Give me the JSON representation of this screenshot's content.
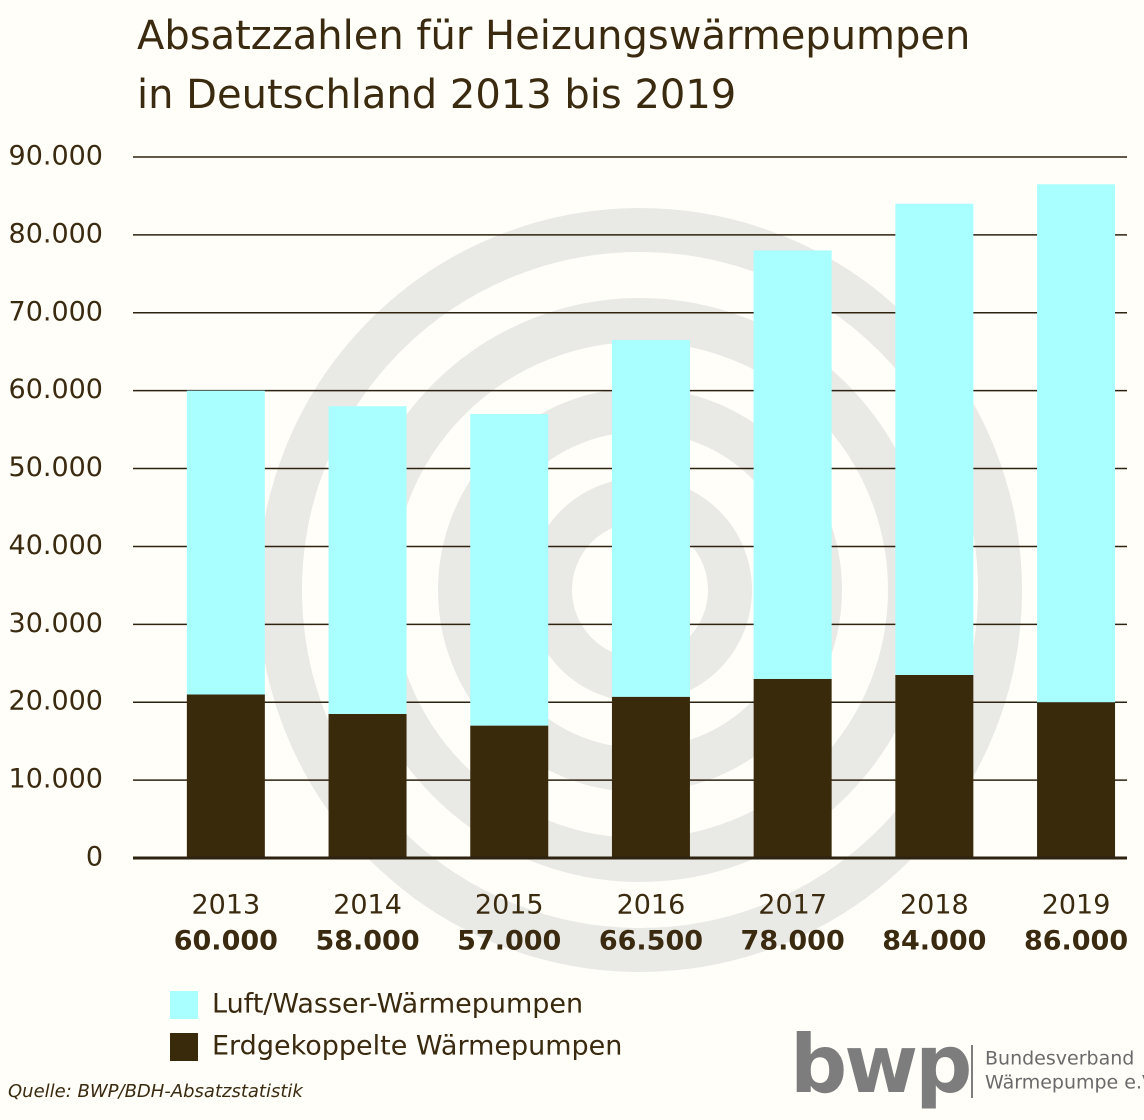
{
  "chart_data": {
    "type": "stacked_bar",
    "title_lines": [
      "Absatzzahlen für Heizungswärmepumpen",
      "in Deutschland 2013 bis 2019"
    ],
    "categories": [
      "2013",
      "2014",
      "2015",
      "2016",
      "2017",
      "2018",
      "2019"
    ],
    "category_totals": [
      "60.000",
      "58.000",
      "57.000",
      "66.500",
      "78.000",
      "84.000",
      "86.000"
    ],
    "series": [
      {
        "name": "Erdgekoppelte Wärmepumpen",
        "color": "#3a2a0c",
        "values": [
          21000,
          18500,
          17000,
          20700,
          23000,
          23500,
          20000
        ]
      },
      {
        "name": "Luft/Wasser-Wärmepumpen",
        "color": "#a9ffff",
        "values": [
          39000,
          39500,
          40000,
          45800,
          55000,
          60500,
          66500
        ]
      }
    ],
    "ylim": [
      0,
      90000
    ],
    "yticks": [
      0,
      {
        "value": 10000,
        "label": "10.000"
      },
      {
        "value": 20000,
        "label": "20.000"
      },
      {
        "value": 30000,
        "label": "30.000"
      },
      {
        "value": 40000,
        "label": "40.000"
      },
      {
        "value": 50000,
        "label": "50.000"
      },
      {
        "value": 60000,
        "label": "60.000"
      },
      {
        "value": 70000,
        "label": "70.000"
      },
      {
        "value": 80000,
        "label": "80.000"
      },
      {
        "value": 90000,
        "label": "90.000"
      }
    ],
    "grid": true,
    "source": "Quelle: BWP/BDH-Absatzstatistik",
    "logo": {
      "mark": "bwp",
      "lines": [
        "Bundesverband",
        "Wärmepumpe e.V."
      ]
    }
  }
}
